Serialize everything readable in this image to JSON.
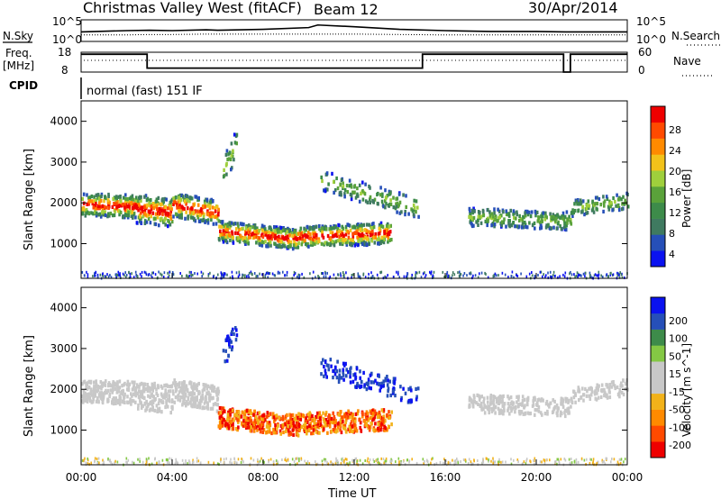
{
  "header": {
    "title": "Christmas Valley West (fitACF)",
    "beam": "Beam 12",
    "date": "30/Apr/2014",
    "cpid_label": "CPID",
    "cpid_value": "normal (fast) 151 IF"
  },
  "colors": {
    "power": [
      "#0a12f0",
      "#264fb8",
      "#3f7a60",
      "#3d8b4a",
      "#5aa23a",
      "#9fcf3c",
      "#f2c21a",
      "#ff8a00",
      "#ff4a00",
      "#ef0000"
    ],
    "velocity": [
      "#ef0000",
      "#ff4a00",
      "#ff8a00",
      "#f2b21a",
      "#c8c8c8",
      "#c8c8c8",
      "#84c844",
      "#3d8b4a",
      "#264fb8",
      "#0a12f0"
    ]
  },
  "chart_data": [
    {
      "type": "line",
      "name": "noise-panel",
      "left_label": "N.Sky",
      "right_label": "N.Search",
      "y_ticks_left": [
        "10^5",
        "10^0"
      ],
      "y_ticks_right": [
        "10^5",
        "10^0"
      ],
      "x": [
        0,
        2,
        3,
        4,
        5.5,
        6,
        8,
        10,
        10.4,
        12,
        14,
        16,
        18,
        20,
        21.3,
        22,
        24
      ],
      "series": [
        {
          "values": [
            2.2,
            2.5,
            2.6,
            2.5,
            2.7,
            2.6,
            2.8,
            3.2,
            3.8,
            3.4,
            2.8,
            2.5,
            2.3,
            2.3,
            2.2,
            2.2,
            2.2
          ]
        },
        {
          "values": [
            1.5,
            1.5,
            1.6,
            1.6,
            1.7,
            1.7,
            1.7,
            1.7,
            1.7,
            1.7,
            1.6,
            1.5,
            1.5,
            1.5,
            1.5,
            1.5,
            1.5
          ]
        }
      ],
      "ylim": [
        0,
        5
      ]
    },
    {
      "type": "line",
      "name": "frequency-panel",
      "left_label": "Freq.",
      "left_unit": "[MHz]",
      "right_label": "Nave",
      "y_ticks_left": [
        "18",
        "8"
      ],
      "y_ticks_right": [
        "60",
        "0"
      ],
      "x": [
        0,
        2.9,
        2.9,
        15.0,
        15.0,
        21.2,
        21.2,
        21.5,
        21.5,
        24
      ],
      "series": [
        {
          "values": [
            17,
            17,
            10,
            10,
            17,
            17,
            8,
            8,
            17,
            17
          ]
        }
      ],
      "ylim": [
        8,
        18
      ]
    },
    {
      "type": "heatmap",
      "name": "power-panel",
      "ylabel": "Slant Range [km]",
      "y_ticks": [
        1000,
        2000,
        3000,
        4000
      ],
      "ylim": [
        150,
        4500
      ],
      "xlim": [
        0,
        24
      ],
      "colorbar_label": "Power [dB]",
      "colorbar_ticks": [
        4,
        8,
        12,
        16,
        20,
        24,
        28
      ],
      "clim": [
        0,
        30
      ]
    },
    {
      "type": "heatmap",
      "name": "velocity-panel",
      "ylabel": "Slant Range [km]",
      "y_ticks": [
        1000,
        2000,
        3000,
        4000
      ],
      "ylim": [
        150,
        4500
      ],
      "xlim": [
        0,
        24
      ],
      "xlabel": "Time UT",
      "x_ticks": [
        "00:00",
        "04:00",
        "08:00",
        "12:00",
        "16:00",
        "20:00",
        "00:00"
      ],
      "colorbar_label": "Velocity [m s^-1]",
      "colorbar_ticks": [
        200,
        100,
        50,
        15,
        -15,
        -50,
        -100,
        -200
      ],
      "clim": [
        -250,
        250
      ]
    }
  ]
}
